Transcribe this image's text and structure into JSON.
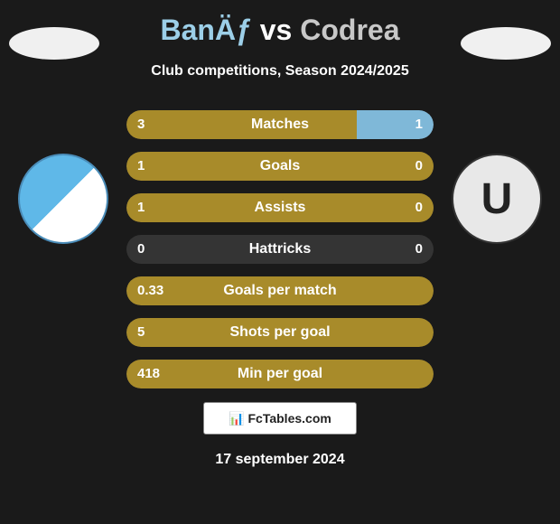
{
  "title": {
    "player1": "BanÄƒ",
    "vs": "vs",
    "player2": "Codrea"
  },
  "subtitle": "Club competitions, Season 2024/2025",
  "colors": {
    "bar_left": "#a88b2a",
    "bar_right": "#7fb8d8",
    "bar_bg": "rgba(200,200,200,0.15)",
    "title_p1": "#9ccfe8",
    "title_p2": "#c8c8c8",
    "background": "#1a1a1a"
  },
  "stats": [
    {
      "label": "Matches",
      "left_val": "3",
      "right_val": "1",
      "left_pct": 75,
      "right_pct": 25,
      "mode": "split"
    },
    {
      "label": "Goals",
      "left_val": "1",
      "right_val": "0",
      "left_pct": 100,
      "right_pct": 0,
      "mode": "split"
    },
    {
      "label": "Assists",
      "left_val": "1",
      "right_val": "0",
      "left_pct": 100,
      "right_pct": 0,
      "mode": "split"
    },
    {
      "label": "Hattricks",
      "left_val": "0",
      "right_val": "0",
      "left_pct": 0,
      "right_pct": 0,
      "mode": "empty"
    },
    {
      "label": "Goals per match",
      "left_val": "0.33",
      "right_val": "",
      "left_pct": 100,
      "right_pct": 0,
      "mode": "full"
    },
    {
      "label": "Shots per goal",
      "left_val": "5",
      "right_val": "",
      "left_pct": 100,
      "right_pct": 0,
      "mode": "full"
    },
    {
      "label": "Min per goal",
      "left_val": "418",
      "right_val": "",
      "left_pct": 100,
      "right_pct": 0,
      "mode": "full"
    }
  ],
  "footer": {
    "logo_text": "📊 FcTables.com",
    "date": "17 september 2024"
  }
}
